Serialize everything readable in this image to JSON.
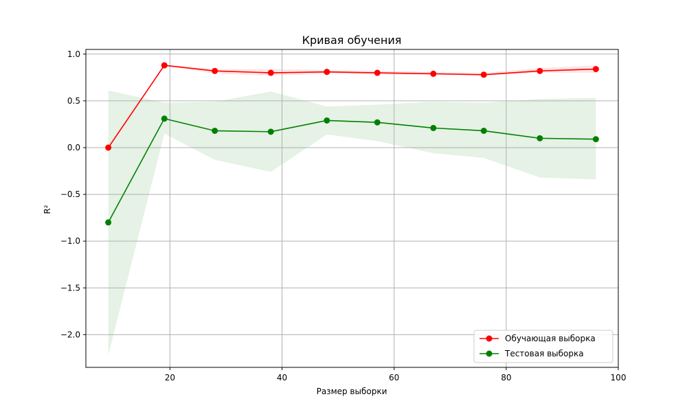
{
  "chart_data": {
    "type": "line",
    "title": "Кривая обучения",
    "xlabel": "Размер выборки",
    "ylabel": "R²",
    "xlim": [
      5,
      100
    ],
    "ylim": [
      -2.35,
      1.05
    ],
    "x_ticks": [
      20,
      40,
      60,
      80,
      100
    ],
    "y_ticks": [
      -2.0,
      -1.5,
      -1.0,
      -0.5,
      0.0,
      0.5,
      1.0
    ],
    "x_tick_labels": [
      "20",
      "40",
      "60",
      "80",
      "100"
    ],
    "y_tick_labels": [
      "−2.0",
      "−1.5",
      "−1.0",
      "−0.5",
      "0.0",
      "0.5",
      "1.0"
    ],
    "grid": true,
    "legend_position": "bottom-right",
    "x": [
      9,
      19,
      28,
      38,
      48,
      57,
      67,
      76,
      86,
      96
    ],
    "series": [
      {
        "name": "Обучающая выборка",
        "color": "#ff0000",
        "band_color": "#ff0000",
        "values": [
          0.0,
          0.88,
          0.82,
          0.8,
          0.81,
          0.8,
          0.79,
          0.78,
          0.82,
          0.84
        ],
        "band_lower": [
          0.0,
          0.88,
          0.79,
          0.77,
          0.79,
          0.78,
          0.78,
          0.77,
          0.8,
          0.8
        ],
        "band_upper": [
          0.0,
          0.89,
          0.84,
          0.84,
          0.83,
          0.82,
          0.81,
          0.8,
          0.85,
          0.88
        ]
      },
      {
        "name": "Тестовая выборка",
        "color": "#008000",
        "band_color": "#008000",
        "values": [
          -0.8,
          0.31,
          0.18,
          0.17,
          0.29,
          0.27,
          0.21,
          0.18,
          0.1,
          0.09
        ],
        "band_lower": [
          -2.22,
          0.15,
          -0.13,
          -0.26,
          0.14,
          0.07,
          -0.06,
          -0.11,
          -0.32,
          -0.34
        ],
        "band_upper": [
          0.61,
          0.48,
          0.49,
          0.6,
          0.44,
          0.46,
          0.49,
          0.48,
          0.52,
          0.53
        ]
      }
    ]
  }
}
